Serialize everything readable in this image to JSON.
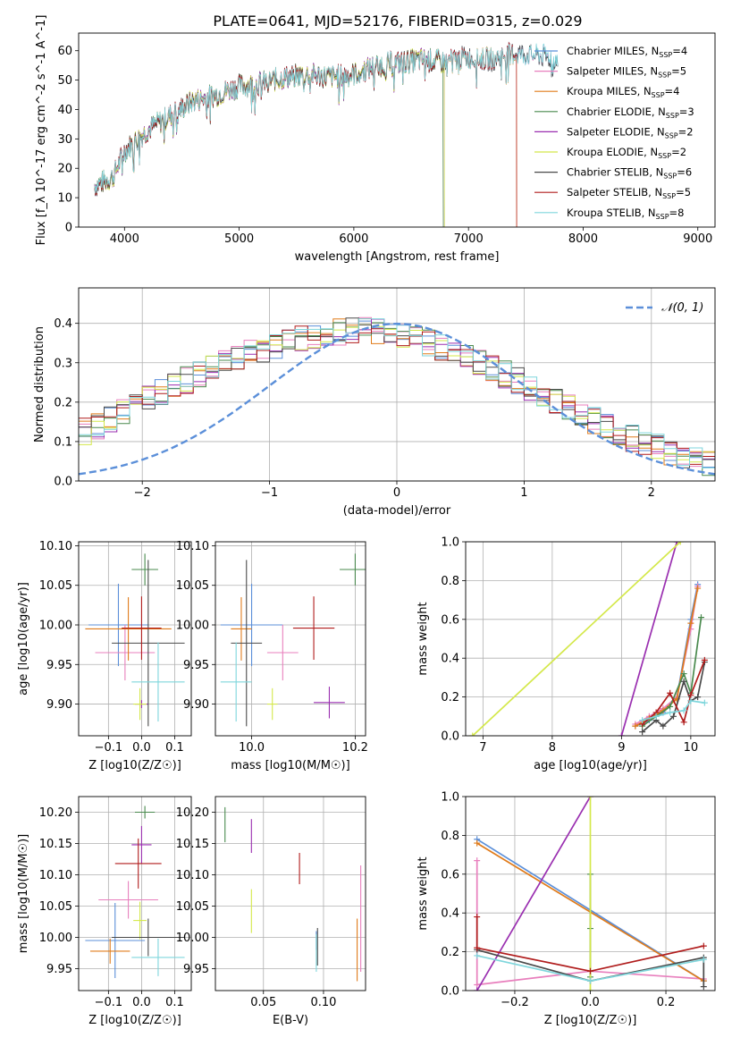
{
  "figure_title": "PLATE=0641, MJD=52176, FIBERID=0315, z=0.029",
  "colors": {
    "Chabrier MILES": "#5b8fd9",
    "Salpeter MILES": "#e87fbd",
    "Kroupa MILES": "#e07b1a",
    "Chabrier ELODIE": "#4a8a4e",
    "Salpeter ELODIE": "#9a2fb0",
    "Kroupa ELODIE": "#d4e84a",
    "Chabrier STELIB": "#4a4a4a",
    "Salpeter STELIB": "#b01c1c",
    "Kroupa STELIB": "#7fd6dc"
  },
  "chart_data": [
    {
      "id": "spectrum",
      "type": "line",
      "title": "PLATE=0641, MJD=52176, FIBERID=0315, z=0.029",
      "xlabel": "wavelength [Angstrom, rest frame]",
      "ylabel": "Flux [f_λ 10^-17 erg cm^-2 s^-1 A^-1]",
      "xlim": [
        3600,
        9150
      ],
      "ylim": [
        0,
        66
      ],
      "xticks": [
        4000,
        5000,
        6000,
        7000,
        8000,
        9000
      ],
      "yticks": [
        0,
        10,
        20,
        30,
        40,
        50,
        60
      ],
      "grid": false,
      "legend_position": "right",
      "legend": [
        "Chabrier MILES, N_SSP=4",
        "Salpeter MILES, N_SSP=5",
        "Kroupa MILES, N_SSP=4",
        "Chabrier ELODIE, N_SSP=3",
        "Salpeter ELODIE, N_SSP=2",
        "Kroupa ELODIE, N_SSP=2",
        "Chabrier STELIB, N_SSP=6",
        "Salpeter STELIB, N_SSP=5",
        "Kroupa STELIB, N_SSP=8"
      ],
      "continuum": {
        "x": [
          3740,
          3900,
          4000,
          4200,
          4400,
          4600,
          4800,
          5000,
          5200,
          5400,
          5600,
          5800,
          6000,
          6200,
          6400,
          6600,
          6800,
          7000,
          7200,
          7400,
          7600,
          7750
        ],
        "y": [
          14,
          17,
          26,
          33,
          38,
          43,
          45,
          48,
          49,
          51,
          52,
          51,
          52,
          55,
          56,
          57,
          56,
          58,
          57,
          59,
          59,
          57
        ]
      },
      "series_ends": {
        "Chabrier MILES": 7780,
        "Salpeter MILES": 7740,
        "Kroupa MILES": 7420,
        "Chabrier ELODIE": 6780,
        "Salpeter ELODIE": 6790,
        "Kroupa ELODIE": 6790,
        "Chabrier STELIB": 7780,
        "Salpeter STELIB": 7420,
        "Kroupa STELIB": 7780
      }
    },
    {
      "id": "residuals",
      "type": "histogram",
      "xlabel": "(data-model)/error",
      "ylabel": "Normed distribution",
      "xlim": [
        -2.5,
        2.5
      ],
      "ylim": [
        0,
        0.49
      ],
      "xticks": [
        -2,
        -1,
        0,
        1,
        2
      ],
      "yticks": [
        0.0,
        0.1,
        0.2,
        0.3,
        0.4
      ],
      "grid": true,
      "legend": [
        "𝒩(0, 1)"
      ],
      "legend_position": "top-right",
      "bin_width": 0.1,
      "envelope": [
        0.035,
        0.038,
        0.035,
        0.04,
        0.048,
        0.06,
        0.07,
        0.085,
        0.1,
        0.11,
        0.125,
        0.14,
        0.155,
        0.175,
        0.19,
        0.21,
        0.225,
        0.24,
        0.255,
        0.27,
        0.285,
        0.3,
        0.31,
        0.325,
        0.335,
        0.345,
        0.355,
        0.362,
        0.368,
        0.372,
        0.378,
        0.38,
        0.382,
        0.38,
        0.376,
        0.37,
        0.362,
        0.352,
        0.34,
        0.328,
        0.315,
        0.3,
        0.285,
        0.27,
        0.255,
        0.24,
        0.225,
        0.205,
        0.19,
        0.17,
        0.155,
        0.14,
        0.125,
        0.11,
        0.1,
        0.085,
        0.075,
        0.065,
        0.055,
        0.047,
        0.04,
        0.035,
        0.032,
        0.03,
        0.03,
        0.028,
        0.027,
        0.025,
        0.025,
        0.026
      ],
      "normal_mean": 0,
      "normal_sigma": 1
    },
    {
      "id": "age-vs-Z",
      "type": "scatter",
      "xlabel": "Z [log10(Z/Z☉)]",
      "ylabel": "age [log10(age/yr)]",
      "xlim": [
        -0.19,
        0.15
      ],
      "ylim": [
        9.86,
        10.105
      ],
      "xticks": [
        -0.1,
        0.0,
        0.1
      ],
      "yticks": [
        9.9,
        9.95,
        10.0,
        10.05,
        10.1
      ],
      "grid": true,
      "points": [
        {
          "model": "Chabrier MILES",
          "x": -0.07,
          "y": 10.0,
          "xerr": 0.09,
          "yerr": 0.052
        },
        {
          "model": "Salpeter MILES",
          "x": -0.05,
          "y": 9.965,
          "xerr": 0.09,
          "yerr": 0.035
        },
        {
          "model": "Kroupa MILES",
          "x": -0.04,
          "y": 9.995,
          "xerr": 0.13,
          "yerr": 0.04
        },
        {
          "model": "Chabrier ELODIE",
          "x": 0.01,
          "y": 10.07,
          "xerr": 0.04,
          "yerr": 0.02
        },
        {
          "model": "Salpeter ELODIE",
          "x": 0.0,
          "y": 9.9,
          "xerr": 0.02,
          "yerr": 0.005
        },
        {
          "model": "Kroupa ELODIE",
          "x": -0.005,
          "y": 9.9,
          "xerr": 0.02,
          "yerr": 0.02
        },
        {
          "model": "Chabrier STELIB",
          "x": 0.02,
          "y": 9.977,
          "xerr": 0.11,
          "yerr": 0.105
        },
        {
          "model": "Salpeter STELIB",
          "x": 0.0,
          "y": 9.996,
          "xerr": 0.06,
          "yerr": 0.04
        },
        {
          "model": "Kroupa STELIB",
          "x": 0.05,
          "y": 9.928,
          "xerr": 0.08,
          "yerr": 0.05
        }
      ]
    },
    {
      "id": "age-vs-mass",
      "type": "scatter",
      "xlabel": "mass [log10(M/M☉)]",
      "ylabel": "",
      "xlim": [
        9.93,
        10.22
      ],
      "ylim": [
        9.86,
        10.105
      ],
      "xticks": [
        10.0,
        10.2
      ],
      "yticks": [
        9.9,
        9.95,
        10.0,
        10.05,
        10.1
      ],
      "grid": true,
      "points": [
        {
          "model": "Chabrier MILES",
          "x": 10.0,
          "y": 10.0,
          "xerr": 0.06,
          "yerr": 0.052
        },
        {
          "model": "Salpeter MILES",
          "x": 10.06,
          "y": 9.965,
          "xerr": 0.03,
          "yerr": 0.035
        },
        {
          "model": "Kroupa MILES",
          "x": 9.98,
          "y": 9.995,
          "xerr": 0.02,
          "yerr": 0.04
        },
        {
          "model": "Chabrier ELODIE",
          "x": 10.2,
          "y": 10.07,
          "xerr": 0.03,
          "yerr": 0.02
        },
        {
          "model": "Salpeter ELODIE",
          "x": 10.15,
          "y": 9.902,
          "xerr": 0.03,
          "yerr": 0.02
        },
        {
          "model": "Kroupa ELODIE",
          "x": 10.04,
          "y": 9.9,
          "xerr": 0.01,
          "yerr": 0.02
        },
        {
          "model": "Chabrier STELIB",
          "x": 9.99,
          "y": 9.977,
          "xerr": 0.03,
          "yerr": 0.105
        },
        {
          "model": "Salpeter STELIB",
          "x": 10.12,
          "y": 9.996,
          "xerr": 0.04,
          "yerr": 0.04
        },
        {
          "model": "Kroupa STELIB",
          "x": 9.97,
          "y": 9.928,
          "xerr": 0.03,
          "yerr": 0.05
        }
      ]
    },
    {
      "id": "weight-vs-age",
      "type": "line",
      "xlabel": "age [log10(age/yr)]",
      "ylabel": "mass weight",
      "xlim": [
        6.75,
        10.35
      ],
      "ylim": [
        0,
        1.0
      ],
      "xticks": [
        7,
        8,
        9,
        10
      ],
      "yticks": [
        0.0,
        0.2,
        0.4,
        0.6,
        0.8,
        1.0
      ],
      "grid": true,
      "series": [
        {
          "model": "Chabrier MILES",
          "x": [
            9.2,
            9.4,
            9.6,
            9.8,
            10.0,
            10.1
          ],
          "y": [
            0.05,
            0.08,
            0.12,
            0.2,
            0.6,
            0.78
          ]
        },
        {
          "model": "Salpeter MILES",
          "x": [
            9.2,
            9.4,
            9.6,
            9.8,
            10.0,
            10.1
          ],
          "y": [
            0.06,
            0.1,
            0.14,
            0.2,
            0.55,
            0.77
          ]
        },
        {
          "model": "Kroupa MILES",
          "x": [
            9.2,
            9.4,
            9.6,
            9.8,
            10.0,
            10.1
          ],
          "y": [
            0.05,
            0.09,
            0.13,
            0.19,
            0.58,
            0.76
          ]
        },
        {
          "model": "Chabrier ELODIE",
          "x": [
            9.3,
            9.5,
            9.7,
            9.9,
            10.0,
            10.15
          ],
          "y": [
            0.05,
            0.1,
            0.15,
            0.32,
            0.22,
            0.61
          ]
        },
        {
          "model": "Salpeter ELODIE",
          "x": [
            9.0,
            9.8
          ],
          "y": [
            0.0,
            1.0
          ]
        },
        {
          "model": "Kroupa ELODIE",
          "x": [
            6.85,
            9.85
          ],
          "y": [
            0.0,
            1.0
          ]
        },
        {
          "model": "Chabrier STELIB",
          "x": [
            9.3,
            9.5,
            9.6,
            9.75,
            9.9,
            10.0,
            10.1,
            10.2
          ],
          "y": [
            0.02,
            0.08,
            0.05,
            0.1,
            0.28,
            0.18,
            0.2,
            0.38
          ]
        },
        {
          "model": "Salpeter STELIB",
          "x": [
            9.3,
            9.5,
            9.7,
            9.9,
            10.0,
            10.2
          ],
          "y": [
            0.06,
            0.12,
            0.22,
            0.07,
            0.21,
            0.39
          ]
        },
        {
          "model": "Kroupa STELIB",
          "x": [
            9.3,
            9.5,
            9.7,
            9.9,
            10.0,
            10.2
          ],
          "y": [
            0.08,
            0.1,
            0.12,
            0.13,
            0.18,
            0.17
          ]
        }
      ]
    },
    {
      "id": "mass-vs-Z",
      "type": "scatter",
      "xlabel": "Z [log10(Z/Z☉)]",
      "ylabel": "mass [log10(M/M☉)]",
      "xlim": [
        -0.19,
        0.15
      ],
      "ylim": [
        9.915,
        10.225
      ],
      "xticks": [
        -0.1,
        0.0,
        0.1
      ],
      "yticks": [
        9.95,
        10.0,
        10.05,
        10.1,
        10.15,
        10.2
      ],
      "grid": true,
      "points": [
        {
          "model": "Chabrier MILES",
          "x": -0.08,
          "y": 9.995,
          "xerr": 0.09,
          "yerr": 0.06
        },
        {
          "model": "Salpeter MILES",
          "x": -0.04,
          "y": 10.06,
          "xerr": 0.09,
          "yerr": 0.03
        },
        {
          "model": "Kroupa MILES",
          "x": -0.095,
          "y": 9.978,
          "xerr": 0.06,
          "yerr": 0.02
        },
        {
          "model": "Chabrier ELODIE",
          "x": 0.01,
          "y": 10.2,
          "xerr": 0.03,
          "yerr": 0.01
        },
        {
          "model": "Salpeter ELODIE",
          "x": 0.0,
          "y": 10.148,
          "xerr": 0.03,
          "yerr": 0.03
        },
        {
          "model": "Kroupa ELODIE",
          "x": -0.005,
          "y": 10.027,
          "xerr": 0.02,
          "yerr": 0.03
        },
        {
          "model": "Chabrier STELIB",
          "x": 0.02,
          "y": 10.0,
          "xerr": 0.11,
          "yerr": 0.03
        },
        {
          "model": "Salpeter STELIB",
          "x": -0.01,
          "y": 10.118,
          "xerr": 0.07,
          "yerr": 0.04
        },
        {
          "model": "Kroupa STELIB",
          "x": 0.05,
          "y": 9.968,
          "xerr": 0.08,
          "yerr": 0.03
        }
      ]
    },
    {
      "id": "mass-vs-EBV",
      "type": "scatter",
      "xlabel": "E(B-V)",
      "ylabel": "",
      "xlim": [
        0.01,
        0.135
      ],
      "ylim": [
        9.915,
        10.225
      ],
      "xticks": [
        0.05,
        0.1
      ],
      "yticks": [
        9.95,
        10.0,
        10.05,
        10.1,
        10.15,
        10.2
      ],
      "grid": true,
      "points": [
        {
          "model": "Chabrier MILES",
          "x": 0.094,
          "y": 9.995,
          "xerr": 0,
          "yerr": 0.015
        },
        {
          "model": "Salpeter MILES",
          "x": 0.131,
          "y": 10.03,
          "xerr": 0,
          "yerr": 0.085
        },
        {
          "model": "Kroupa MILES",
          "x": 0.128,
          "y": 9.98,
          "xerr": 0,
          "yerr": 0.05
        },
        {
          "model": "Chabrier ELODIE",
          "x": 0.018,
          "y": 10.18,
          "xerr": 0,
          "yerr": 0.028
        },
        {
          "model": "Salpeter ELODIE",
          "x": 0.04,
          "y": 10.162,
          "xerr": 0,
          "yerr": 0.027
        },
        {
          "model": "Kroupa ELODIE",
          "x": 0.04,
          "y": 10.042,
          "xerr": 0,
          "yerr": 0.035
        },
        {
          "model": "Chabrier STELIB",
          "x": 0.095,
          "y": 9.985,
          "xerr": 0,
          "yerr": 0.03
        },
        {
          "model": "Salpeter STELIB",
          "x": 0.08,
          "y": 10.11,
          "xerr": 0,
          "yerr": 0.025
        },
        {
          "model": "Kroupa STELIB",
          "x": 0.094,
          "y": 9.975,
          "xerr": 0,
          "yerr": 0.03
        }
      ]
    },
    {
      "id": "weight-vs-Z",
      "type": "line",
      "xlabel": "Z [log10(Z/Z☉)]",
      "ylabel": "mass weight",
      "xlim": [
        -0.33,
        0.33
      ],
      "ylim": [
        0,
        1.0
      ],
      "xticks": [
        -0.2,
        0.0,
        0.2
      ],
      "yticks": [
        0.0,
        0.2,
        0.4,
        0.6,
        0.8,
        1.0
      ],
      "grid": true,
      "series": [
        {
          "model": "Chabrier MILES",
          "x": [
            -0.3,
            0.3
          ],
          "y": [
            0.78,
            0.05
          ]
        },
        {
          "model": "Salpeter MILES",
          "x": [
            -0.3,
            -0.3,
            0.0,
            0.3
          ],
          "y": [
            0.67,
            0.03,
            0.1,
            0.06
          ]
        },
        {
          "model": "Kroupa MILES",
          "x": [
            -0.3,
            0.3
          ],
          "y": [
            0.76,
            0.05
          ]
        },
        {
          "model": "Chabrier ELODIE",
          "x": [
            0.0,
            0.0,
            0.0
          ],
          "y": [
            0.6,
            0.32,
            0.07
          ]
        },
        {
          "model": "Salpeter ELODIE",
          "x": [
            -0.3,
            0.0
          ],
          "y": [
            0.0,
            1.0
          ]
        },
        {
          "model": "Kroupa ELODIE",
          "x": [
            0.0,
            0.0
          ],
          "y": [
            0.0,
            1.0
          ]
        },
        {
          "model": "Chabrier STELIB",
          "x": [
            -0.3,
            0.0,
            0.3,
            0.3
          ],
          "y": [
            0.21,
            0.05,
            0.17,
            0.02
          ]
        },
        {
          "model": "Salpeter STELIB",
          "x": [
            -0.3,
            -0.3,
            0.0,
            0.3
          ],
          "y": [
            0.38,
            0.22,
            0.1,
            0.23
          ]
        },
        {
          "model": "Kroupa STELIB",
          "x": [
            -0.3,
            0.0,
            0.3
          ],
          "y": [
            0.18,
            0.05,
            0.16
          ]
        }
      ]
    }
  ]
}
